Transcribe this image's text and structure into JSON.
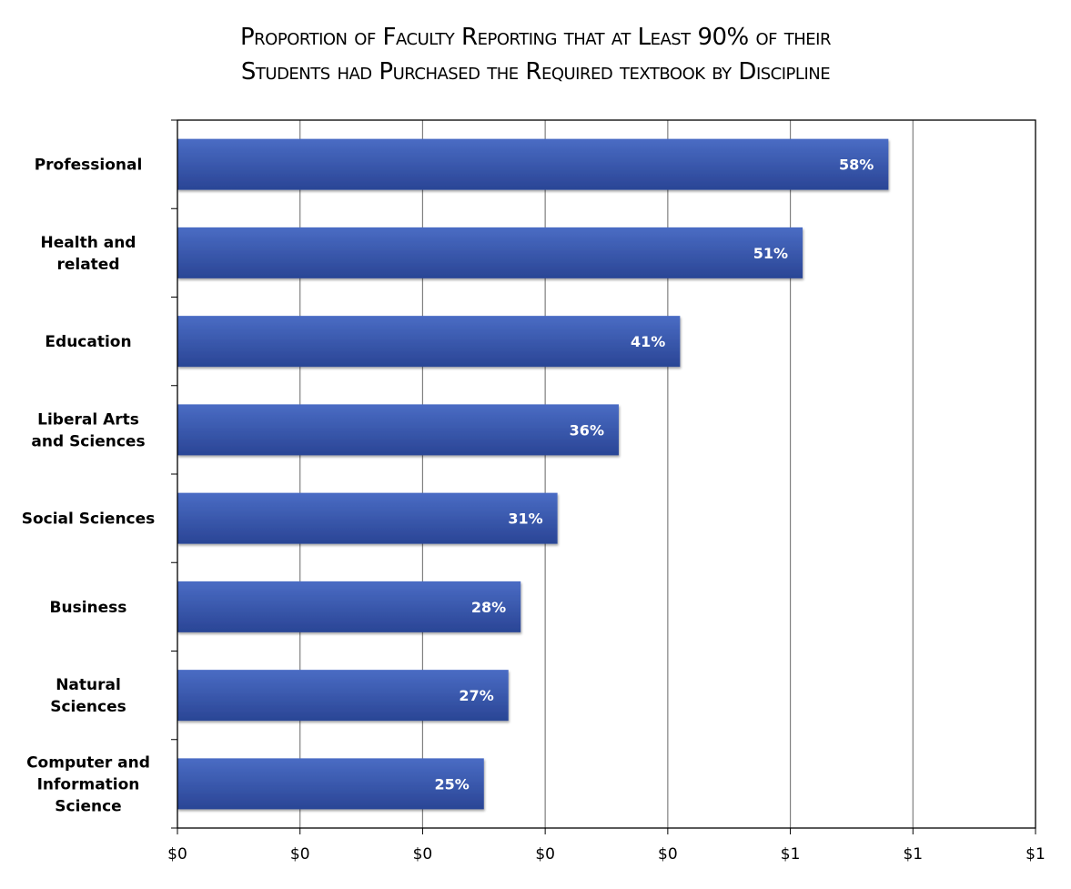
{
  "chart_data": {
    "type": "bar",
    "orientation": "horizontal",
    "title_lines": [
      "Proportion of Faculty Reporting that at Least 90% of their",
      "Students had Purchased the Required textbook by Discipline"
    ],
    "categories": [
      "Professional",
      "Health and related",
      "Education",
      "Liberal Arts and Sciences",
      "Social Sciences",
      "Business",
      "Natural Sciences",
      "Computer and Information Science"
    ],
    "category_label_lines": [
      [
        "Professional"
      ],
      [
        "Health and",
        "related"
      ],
      [
        "Education"
      ],
      [
        "Liberal Arts",
        "and Sciences"
      ],
      [
        "Social Sciences"
      ],
      [
        "Business"
      ],
      [
        "Natural",
        "Sciences"
      ],
      [
        "Computer and",
        "Information",
        "Science"
      ]
    ],
    "values": [
      58,
      51,
      41,
      36,
      31,
      28,
      27,
      25
    ],
    "data_labels": [
      "58%",
      "51%",
      "41%",
      "36%",
      "31%",
      "28%",
      "27%",
      "25%"
    ],
    "x_tick_labels": [
      "$0",
      "$0",
      "$0",
      "$0",
      "$0",
      "$1",
      "$1",
      "$1"
    ],
    "xlim": [
      0,
      70
    ],
    "x_tick_values": [
      0,
      10,
      20,
      30,
      40,
      50,
      60,
      70
    ],
    "grid": "vertical",
    "legend": "none",
    "colors": {
      "bar_top": "#4a6cc4",
      "bar_bottom": "#2a4595",
      "grid": "#808080",
      "frame": "#000000",
      "label_text": "#ffffff"
    }
  }
}
